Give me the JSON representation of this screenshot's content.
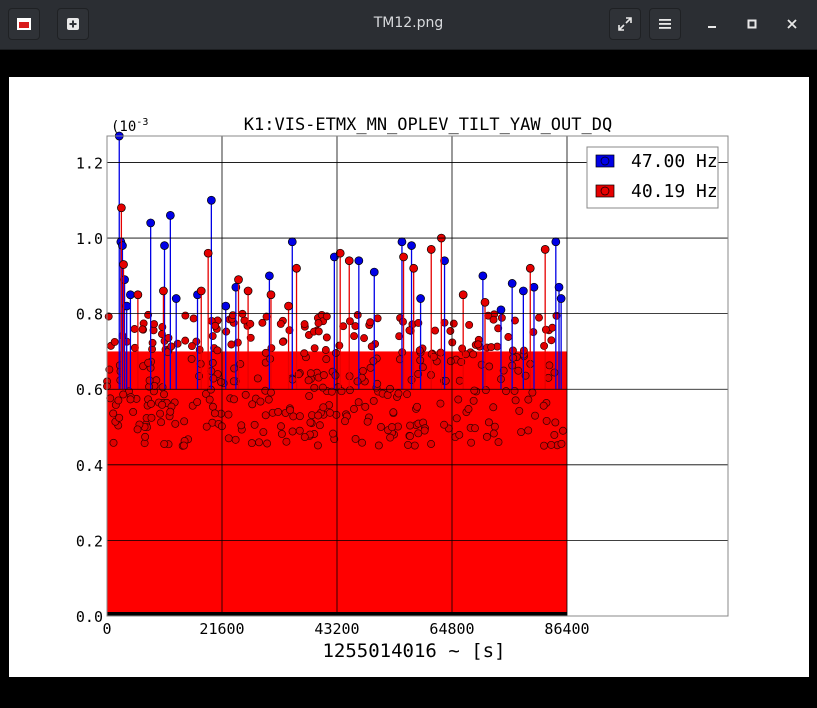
{
  "window": {
    "title": "TM12.png",
    "icons": {
      "app": "image-app-icon",
      "new": "new-tab-icon",
      "fullscreen": "fullscreen-icon",
      "menu": "hamburger-menu-icon",
      "minimize": "minimize-icon",
      "maximize": "maximize-icon",
      "close": "close-icon"
    }
  },
  "chart_data": {
    "type": "scatter",
    "style": "stem",
    "title": "K1:VIS-ETMX_MN_OPLEV_TILT_YAW_OUT_DQ",
    "xlabel": "1255014016 ~ [s]",
    "ylabel": "",
    "y_scale_label": "(10",
    "y_scale_exponent": "-3",
    "xlim": [
      0,
      86400
    ],
    "ylim": [
      0.0,
      1.27
    ],
    "xticks": [
      0,
      21600,
      43200,
      64800,
      86400
    ],
    "xtick_labels": [
      "0",
      "21600",
      "43200",
      "64800",
      "86400"
    ],
    "yticks": [
      0.0,
      0.2,
      0.4,
      0.6,
      0.8,
      1.0,
      1.2
    ],
    "ytick_labels": [
      "0.0",
      "0.2",
      "0.4",
      "0.6",
      "0.8",
      "1.0",
      "1.2"
    ],
    "grid": true,
    "legend_position": "top-right",
    "series": [
      {
        "name": "47.00 Hz",
        "color": "#0000e6",
        "note": "dense stems ~0.45-0.85 with peaks",
        "x": [
          2300,
          2600,
          2900,
          3300,
          3700,
          4400,
          8200,
          10800,
          11900,
          13000,
          17000,
          19600,
          22300,
          24200,
          30500,
          34800,
          42700,
          47300,
          50200,
          55400,
          57200,
          58900,
          63400,
          70600,
          74000,
          76100,
          78200,
          80200,
          84300,
          84900,
          85300
        ],
        "values": [
          1.27,
          0.99,
          0.98,
          0.89,
          0.82,
          0.85,
          1.04,
          0.98,
          1.06,
          0.84,
          0.85,
          1.1,
          0.82,
          0.87,
          0.9,
          0.99,
          0.95,
          0.94,
          0.91,
          0.99,
          0.98,
          0.84,
          0.94,
          0.9,
          0.81,
          0.88,
          0.86,
          0.87,
          0.99,
          0.87,
          0.84
        ]
      },
      {
        "name": "40.19 Hz",
        "color": "#e60000",
        "note": "dense stems ~0.45-0.85 with peaks",
        "x": [
          2700,
          3100,
          5800,
          10600,
          17700,
          19000,
          24700,
          26500,
          30800,
          34100,
          35600,
          43800,
          45500,
          55700,
          57600,
          60900,
          62800,
          66900,
          71000,
          79500,
          82300
        ],
        "values": [
          1.08,
          0.93,
          0.85,
          0.86,
          0.86,
          0.96,
          0.89,
          0.86,
          0.85,
          0.82,
          0.92,
          0.96,
          0.94,
          0.95,
          0.92,
          0.97,
          1.0,
          0.85,
          0.83,
          0.92,
          0.97
        ]
      }
    ]
  }
}
